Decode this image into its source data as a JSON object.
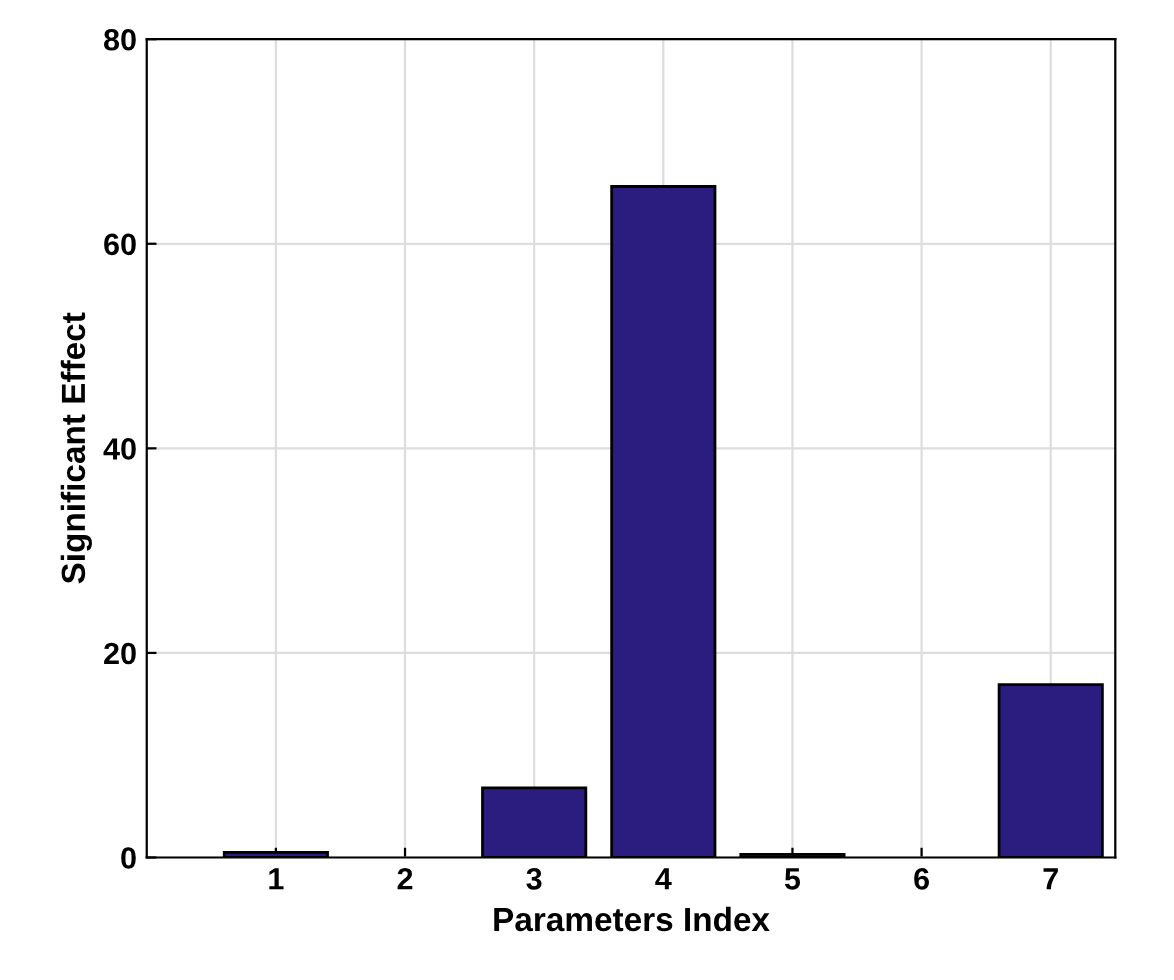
{
  "chart_data": {
    "type": "bar",
    "xlabel": "Parameters Index",
    "ylabel": "Significant Effect",
    "x": [
      1,
      2,
      3,
      4,
      5,
      6,
      7
    ],
    "values": [
      0.5,
      null,
      6.8,
      65.6,
      0.3,
      null,
      16.9
    ],
    "color": "#2b1d7f",
    "xlim": [
      0,
      7.5
    ],
    "xticks": [
      1,
      2,
      3,
      4,
      5,
      6,
      7
    ],
    "ylim": [
      0,
      80
    ],
    "yticks": [
      0,
      20,
      40,
      60,
      80
    ],
    "grid": true
  }
}
